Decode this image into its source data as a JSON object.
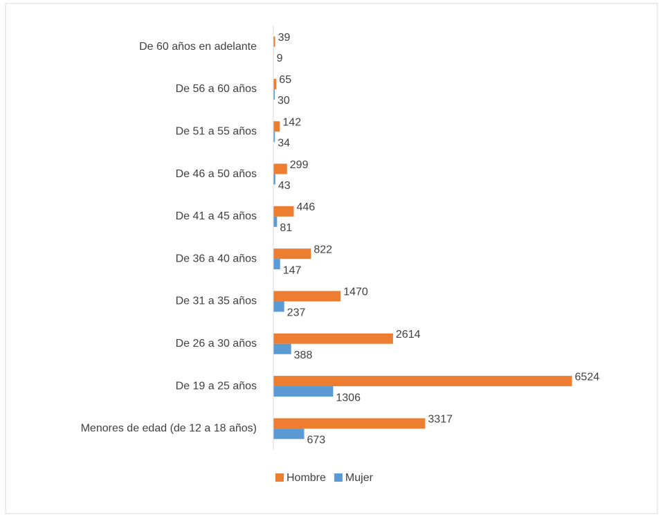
{
  "chart_data": {
    "type": "bar",
    "orientation": "horizontal",
    "categories": [
      "De 60 años en adelante",
      "De 56 a 60 años",
      "De 51 a 55 años",
      "De 46 a 50 años",
      "De 41 a 45 años",
      "De 36 a 40 años",
      "De 31 a 35 años",
      "De 26 a 30 años",
      "De 19 a 25 años",
      "Menores de edad (de 12 a 18 años)"
    ],
    "series": [
      {
        "name": "Hombre",
        "color": "#ed7d31",
        "values": [
          39,
          65,
          142,
          299,
          446,
          822,
          1470,
          2614,
          6524,
          3317
        ]
      },
      {
        "name": "Mujer",
        "color": "#5b9bd5",
        "values": [
          9,
          30,
          34,
          43,
          81,
          147,
          237,
          388,
          1306,
          673
        ]
      }
    ],
    "xlim": [
      0,
      7000
    ],
    "legend": "bottom",
    "grid": false
  }
}
